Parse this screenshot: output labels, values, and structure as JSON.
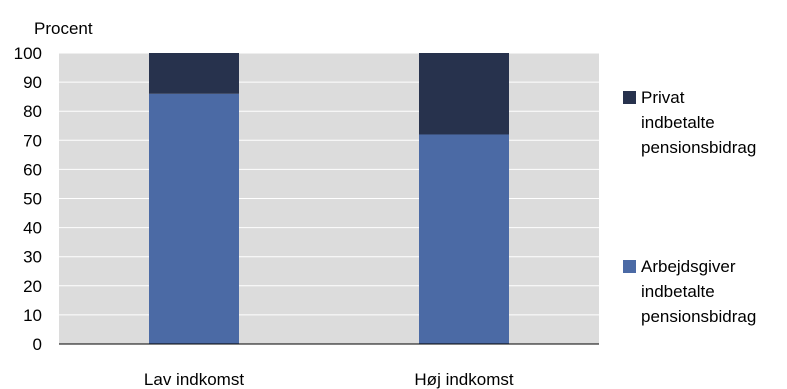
{
  "chart_data": {
    "type": "bar",
    "stacked": true,
    "title": "",
    "xlabel": "",
    "ylabel": "Procent",
    "ylim": [
      0,
      100
    ],
    "yticks": [
      0,
      10,
      20,
      30,
      40,
      50,
      60,
      70,
      80,
      90,
      100
    ],
    "grid": true,
    "legend_position": "right",
    "categories": [
      "Lav indkomst",
      "Høj indkomst"
    ],
    "series": [
      {
        "name": "Arbejdsgiver indbetalte pensionsbidrag",
        "legend_lines": [
          "Arbejdsgiver",
          "indbetalte",
          "pensionsbidrag"
        ],
        "color": "#4b6aa5",
        "values": [
          86,
          72
        ]
      },
      {
        "name": "Privat indbetalte pensionsbidrag",
        "legend_lines": [
          "Privat",
          "indbetalte",
          "pensionsbidrag"
        ],
        "color": "#27324d",
        "values": [
          14,
          28
        ]
      }
    ],
    "colors": {
      "plot_background": "#dcdcdc",
      "page_background": "#ffffff",
      "gridline": "#ffffff"
    }
  }
}
